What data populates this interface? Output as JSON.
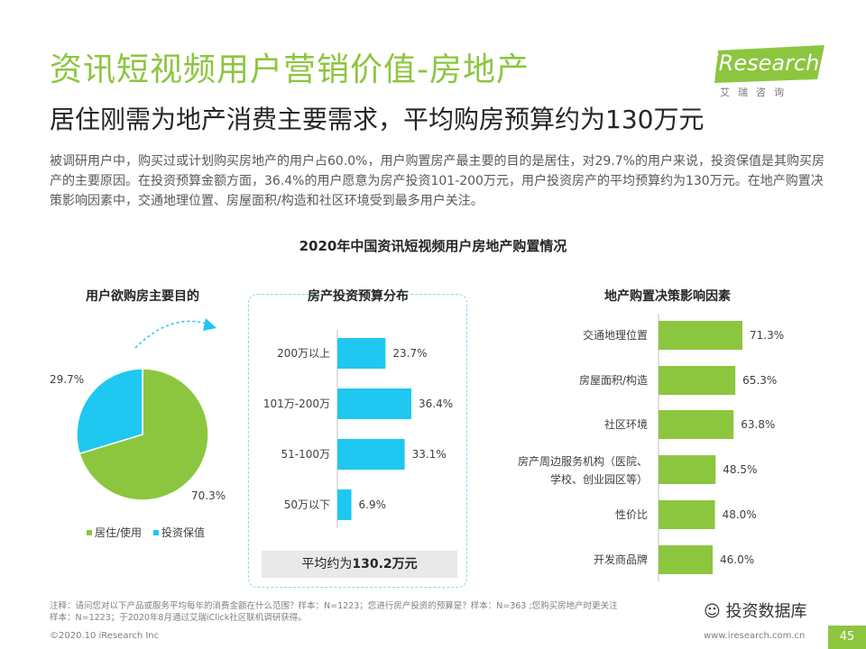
{
  "header": {
    "title": "资讯短视频用户营销价值-房地产",
    "subtitle": "居住刚需为地产消费主要需求，平均购房预算约为130万元",
    "intro": "被调研用户中，购买过或计划购买房地产的用户占60.0%，用户购置房产最主要的目的是居住，对29.7%的用户来说，投资保值是其购买房产的主要原因。在投资预算金额方面，36.4%的用户愿意为房产投资101-200万元，用户投资房产的平均预算约为130万元。在地产购置决策影响因素中，交通地理位置、房屋面积/构造和社区环境受到最多用户关注。"
  },
  "logo": {
    "brand": "iResearch",
    "cn": "艾瑞咨询"
  },
  "colors": {
    "green": "#8cc63f",
    "blue": "#1fc8f0",
    "accent_green": "#8cc63f"
  },
  "main_title": "2020年中国资讯短视频用户房地产购置情况",
  "avg_budget": {
    "prefix": "平均约为",
    "value": "130.2万元"
  },
  "footer": {
    "note": "注释：请问您对以下产品或服务平均每年的消费金额在什么范围？样本：N=1223；您进行房产投资的预算是？样本：N=363 ;您购买房地产时更关注",
    "note2": "样本：N=1223；于2020年8月通过艾瑞iClick社区联机调研获得。",
    "copyright": "©2020.10 iResearch Inc",
    "website": "www.iresearch.com.cn",
    "page": "45",
    "watermark": "投资数据库"
  },
  "chart_data": [
    {
      "type": "pie",
      "title": "用户欲购房主要目的",
      "slices": [
        {
          "name": "居住/使用",
          "value": 70.3,
          "label": "70.3%",
          "color": "#8cc63f"
        },
        {
          "name": "投资保值",
          "value": 29.7,
          "label": "29.7%",
          "color": "#1fc8f0"
        }
      ]
    },
    {
      "type": "bar",
      "orientation": "horizontal",
      "title": "房产投资预算分布",
      "categories": [
        "200万以上",
        "101万-200万",
        "51-100万",
        "50万以下"
      ],
      "values": [
        23.7,
        36.4,
        33.1,
        6.9
      ],
      "labels": [
        "23.7%",
        "36.4%",
        "33.1%",
        "6.9%"
      ],
      "color": "#1fc8f0",
      "xlim": [
        0,
        40
      ]
    },
    {
      "type": "bar",
      "orientation": "horizontal",
      "title": "地产购置决策影响因素",
      "categories": [
        [
          "交通地理位置"
        ],
        [
          "房屋面积/构造"
        ],
        [
          "社区环境"
        ],
        [
          "房产周边服务机构（医院、",
          "学校、创业园区等）"
        ],
        [
          "性价比"
        ],
        [
          "开发商品牌"
        ]
      ],
      "values": [
        71.3,
        65.3,
        63.8,
        48.5,
        48.0,
        46.0
      ],
      "labels": [
        "71.3%",
        "65.3%",
        "63.8%",
        "48.5%",
        "48.0%",
        "46.0%"
      ],
      "color": "#8cc63f",
      "xlim": [
        0,
        80
      ]
    }
  ]
}
